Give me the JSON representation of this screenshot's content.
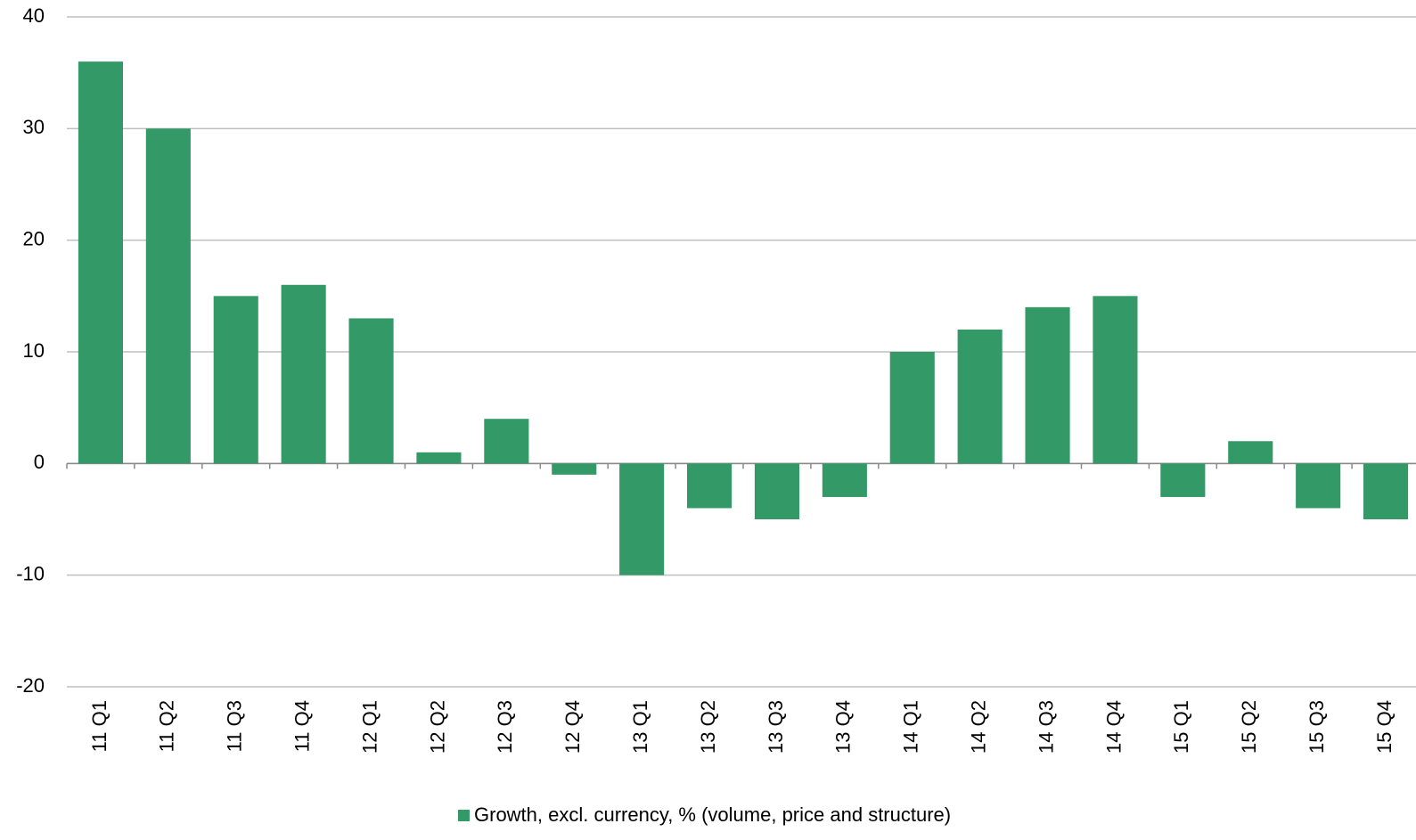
{
  "chart_data": {
    "type": "bar",
    "categories": [
      "11 Q1",
      "11 Q2",
      "11 Q3",
      "11 Q4",
      "12 Q1",
      "12 Q2",
      "12 Q3",
      "12 Q4",
      "13 Q1",
      "13 Q2",
      "13 Q3",
      "13 Q4",
      "14 Q1",
      "14 Q2",
      "14 Q3",
      "14 Q4",
      "15 Q1",
      "15 Q2",
      "15 Q3",
      "15 Q4"
    ],
    "series": [
      {
        "name": "Growth, excl. currency, % (volume, price and structure)",
        "color": "#339966",
        "values": [
          36,
          30,
          15,
          16,
          13,
          1,
          4,
          -1,
          -10,
          -4,
          -5,
          -3,
          10,
          12,
          14,
          15,
          -3,
          2,
          -4,
          -5
        ]
      }
    ],
    "ylim": [
      -20,
      40
    ],
    "yticks": [
      -20,
      -10,
      0,
      10,
      20,
      30,
      40
    ],
    "grid": true,
    "legend": "bottom"
  }
}
